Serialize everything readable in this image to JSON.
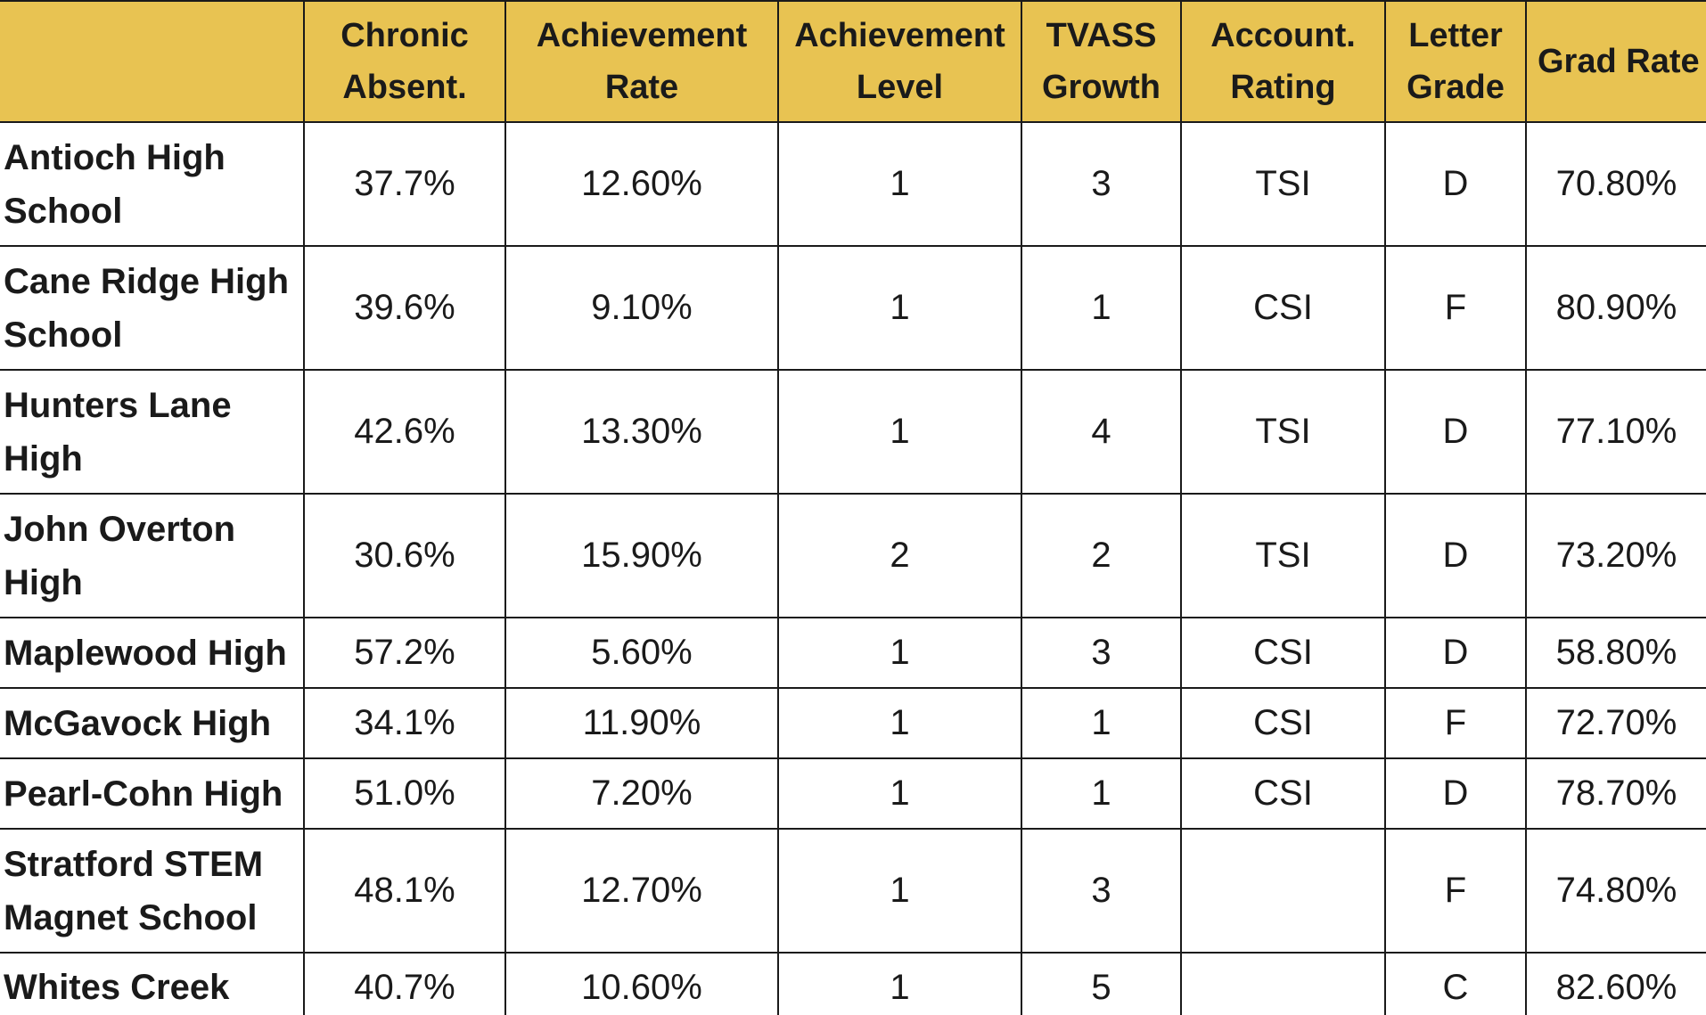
{
  "chart_data": {
    "type": "table",
    "columns": [
      "",
      "Chronic Absent.",
      "Achievement Rate",
      "Achievement Level",
      "TVASS Growth",
      "Account. Rating",
      "Letter Grade",
      "Grad Rate"
    ],
    "headers": [
      {
        "line1": "",
        "line2": ""
      },
      {
        "line1": "Chronic",
        "line2": "Absent."
      },
      {
        "line1": "Achievement",
        "line2": "Rate"
      },
      {
        "line1": "Achievement",
        "line2": "Level"
      },
      {
        "line1": "TVASS",
        "line2": "Growth"
      },
      {
        "line1": "Account.",
        "line2": "Rating"
      },
      {
        "line1": "Letter",
        "line2": "Grade"
      },
      {
        "line1": "Grad Rate",
        "line2": ""
      }
    ],
    "rows": [
      {
        "school": "Antioch High School",
        "chronic_absent": "37.7%",
        "achievement_rate": "12.60%",
        "achievement_level": "1",
        "tvass_growth": "3",
        "account_rating": "TSI",
        "letter_grade": "D",
        "grad_rate": "70.80%"
      },
      {
        "school": "Cane Ridge High School",
        "chronic_absent": "39.6%",
        "achievement_rate": "9.10%",
        "achievement_level": "1",
        "tvass_growth": "1",
        "account_rating": "CSI",
        "letter_grade": "F",
        "grad_rate": "80.90%"
      },
      {
        "school": "Hunters Lane High",
        "chronic_absent": "42.6%",
        "achievement_rate": "13.30%",
        "achievement_level": "1",
        "tvass_growth": "4",
        "account_rating": "TSI",
        "letter_grade": "D",
        "grad_rate": "77.10%"
      },
      {
        "school": "John Overton High",
        "chronic_absent": "30.6%",
        "achievement_rate": "15.90%",
        "achievement_level": "2",
        "tvass_growth": "2",
        "account_rating": "TSI",
        "letter_grade": "D",
        "grad_rate": "73.20%"
      },
      {
        "school": "Maplewood High",
        "chronic_absent": "57.2%",
        "achievement_rate": "5.60%",
        "achievement_level": "1",
        "tvass_growth": "3",
        "account_rating": "CSI",
        "letter_grade": "D",
        "grad_rate": "58.80%"
      },
      {
        "school": "McGavock High",
        "chronic_absent": "34.1%",
        "achievement_rate": "11.90%",
        "achievement_level": "1",
        "tvass_growth": "1",
        "account_rating": "CSI",
        "letter_grade": "F",
        "grad_rate": "72.70%"
      },
      {
        "school": "Pearl-Cohn High",
        "chronic_absent": "51.0%",
        "achievement_rate": "7.20%",
        "achievement_level": "1",
        "tvass_growth": "1",
        "account_rating": "CSI",
        "letter_grade": "D",
        "grad_rate": "78.70%"
      },
      {
        "school": "Stratford STEM Magnet School",
        "chronic_absent": "48.1%",
        "achievement_rate": "12.70%",
        "achievement_level": "1",
        "tvass_growth": "3",
        "account_rating": "",
        "letter_grade": "F",
        "grad_rate": "74.80%"
      },
      {
        "school": "Whites Creek",
        "chronic_absent": "40.7%",
        "achievement_rate": "10.60%",
        "achievement_level": "1",
        "tvass_growth": "5",
        "account_rating": "",
        "letter_grade": "C",
        "grad_rate": "82.60%"
      }
    ]
  },
  "colors": {
    "header_bg": "#e8c352",
    "border": "#1a1a1a",
    "text": "#1a1a1a",
    "body_bg": "#ffffff"
  }
}
